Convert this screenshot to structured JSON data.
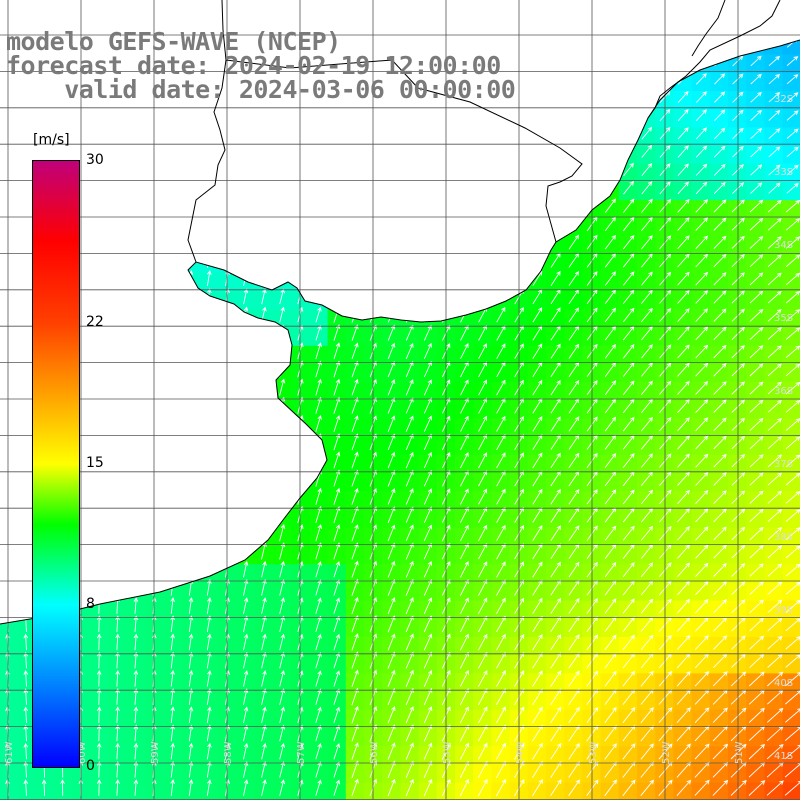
{
  "header": {
    "line1": "modelo GEFS-WAVE (NCEP)",
    "line2": "forecast date: 2024-02-19 12:00:00",
    "line3": "    valid date: 2024-03-06 00:00:00"
  },
  "colorbar": {
    "unit": "[m/s]",
    "min": 0,
    "max": 30,
    "ticks": [
      {
        "value": 30,
        "label": "30"
      },
      {
        "value": 22,
        "label": "22"
      },
      {
        "value": 15,
        "label": "15"
      },
      {
        "value": 8,
        "label": "8"
      },
      {
        "value": 0,
        "label": "0"
      }
    ],
    "stops": [
      {
        "value": 0,
        "color": "#0000ff"
      },
      {
        "value": 8,
        "color": "#00ffff"
      },
      {
        "value": 12,
        "color": "#00ff00"
      },
      {
        "value": 15,
        "color": "#ffff00"
      },
      {
        "value": 22,
        "color": "#ff4000"
      },
      {
        "value": 26,
        "color": "#ff0000"
      },
      {
        "value": 30,
        "color": "#c0007a"
      }
    ]
  },
  "map": {
    "land_color": "#ffffff",
    "coast_color": "#000000",
    "grid_color": "#555555",
    "arrow_color": "#ffffff",
    "latitudes": [
      "32S",
      "33S",
      "34S",
      "35S",
      "36S",
      "37S",
      "38S",
      "39S",
      "40S",
      "41S"
    ],
    "longitudes": [
      "61W",
      "60W",
      "59W",
      "58W",
      "57W",
      "56W",
      "55W",
      "54W",
      "53W",
      "52W",
      "51W"
    ]
  }
}
